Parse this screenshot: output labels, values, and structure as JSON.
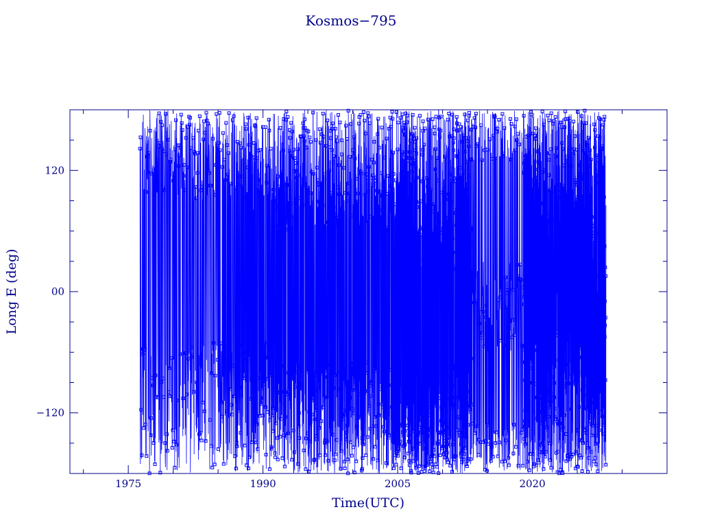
{
  "chart_data": {
    "type": "line",
    "title": "Kosmos−795",
    "xlabel": "Time(UTC)",
    "ylabel": "Long E (deg)",
    "x_ticks": [
      {
        "value": 1975,
        "label": "1975"
      },
      {
        "value": 1990,
        "label": "1990"
      },
      {
        "value": 2005,
        "label": "2005"
      },
      {
        "value": 2020,
        "label": "2020"
      }
    ],
    "y_ticks": [
      {
        "value": -120,
        "label": "−120"
      },
      {
        "value": 0,
        "label": "00"
      },
      {
        "value": 120,
        "label": "120"
      }
    ],
    "xlim": [
      1968.5,
      2035
    ],
    "ylim": [
      -180,
      180
    ],
    "x_minor_step": 5,
    "y_minor_step": 30,
    "grid": false,
    "colors": {
      "series": "#0000ff",
      "axes": "#00008b",
      "text": "#00008b"
    },
    "series": [
      {
        "marker": "square",
        "segments": [
          {
            "x_start": 1976.3,
            "x_end": 1987.0,
            "bands": [
              [
                90,
                180
              ],
              [
                -180,
                -50
              ]
            ],
            "density": 1.0
          },
          {
            "x_start": 1987.0,
            "x_end": 1991.5,
            "bands": [
              [
                80,
                180
              ],
              [
                -180,
                -50
              ]
            ],
            "density": 1.5
          },
          {
            "x_start": 1991.5,
            "x_end": 2004.8,
            "bands": [
              [
                60,
                180
              ],
              [
                -180,
                -70
              ]
            ],
            "density": 1.8
          },
          {
            "x_start": 2004.8,
            "x_end": 2013.3,
            "bands": [
              [
                20,
                180
              ],
              [
                -180,
                -60
              ]
            ],
            "density": 3.5
          },
          {
            "x_start": 2013.3,
            "x_end": 2019.0,
            "bands": [
              [
                -60,
                30
              ],
              [
                130,
                180
              ],
              [
                -180,
                -130
              ]
            ],
            "density": 1.2
          },
          {
            "x_start": 2019.0,
            "x_end": 2028.2,
            "bands": [
              [
                -180,
                180
              ]
            ],
            "density": 4.0
          }
        ]
      }
    ]
  }
}
